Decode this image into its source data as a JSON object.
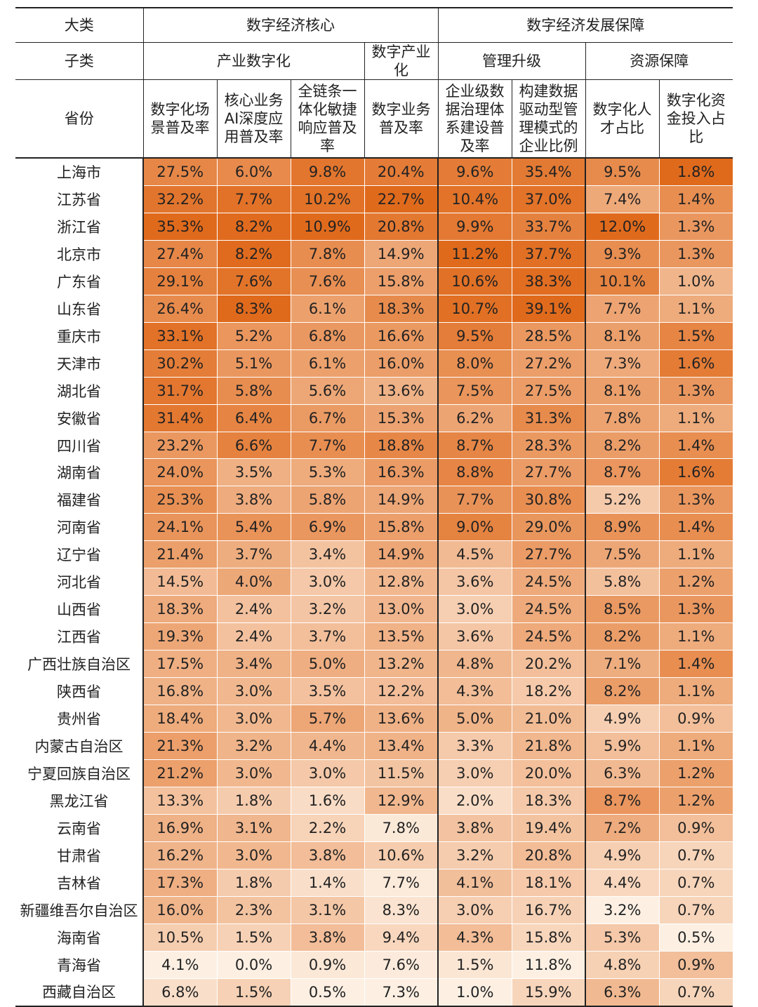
{
  "header": {
    "row1": {
      "label": "大类",
      "group_core": "数字经济核心",
      "group_support": "数字经济发展保障"
    },
    "row2": {
      "label": "子类",
      "sub1": "产业数字化",
      "sub2": "数字产业化",
      "sub3": "管理升级",
      "sub4": "资源保障"
    },
    "row3": {
      "label": "省份",
      "cols": [
        "数字化场景普及率",
        "核心业务AI深度应用普及率",
        "全链条一体化敏捷响应普及率",
        "数字业务普及率",
        "企业级数据治理体系建设普及率",
        "构建数据驱动型管理模式的企业比例",
        "数字化人才占比",
        "数字化资金投入占比"
      ]
    }
  },
  "colors": {
    "min": "#fdf0e3",
    "max": "#e06a1c",
    "text": "#222222",
    "border": "#222222"
  },
  "chart_data": {
    "type": "heatmap",
    "unit": "%",
    "columns": [
      "数字化场景普及率",
      "核心业务AI深度应用普及率",
      "全链条一体化敏捷响应普及率",
      "数字业务普及率",
      "企业级数据治理体系建设普及率",
      "构建数据驱动型管理模式的企业比例",
      "数字化人才占比",
      "数字化资金投入占比"
    ],
    "rows": [
      {
        "name": "上海市",
        "values": [
          "27.5%",
          "6.0%",
          "9.8%",
          "20.4%",
          "9.6%",
          "35.4%",
          "9.5%",
          "1.8%"
        ]
      },
      {
        "name": "江苏省",
        "values": [
          "32.2%",
          "7.7%",
          "10.2%",
          "22.7%",
          "10.4%",
          "37.0%",
          "7.4%",
          "1.4%"
        ]
      },
      {
        "name": "浙江省",
        "values": [
          "35.3%",
          "8.2%",
          "10.9%",
          "20.8%",
          "9.9%",
          "33.7%",
          "12.0%",
          "1.3%"
        ]
      },
      {
        "name": "北京市",
        "values": [
          "27.4%",
          "8.2%",
          "7.8%",
          "14.9%",
          "11.2%",
          "37.7%",
          "9.3%",
          "1.3%"
        ]
      },
      {
        "name": "广东省",
        "values": [
          "29.1%",
          "7.6%",
          "7.6%",
          "15.8%",
          "10.6%",
          "38.3%",
          "10.1%",
          "1.0%"
        ]
      },
      {
        "name": "山东省",
        "values": [
          "26.4%",
          "8.3%",
          "6.1%",
          "18.3%",
          "10.7%",
          "39.1%",
          "7.7%",
          "1.1%"
        ]
      },
      {
        "name": "重庆市",
        "values": [
          "33.1%",
          "5.2%",
          "6.8%",
          "16.6%",
          "9.5%",
          "28.5%",
          "8.1%",
          "1.5%"
        ]
      },
      {
        "name": "天津市",
        "values": [
          "30.2%",
          "5.1%",
          "6.1%",
          "16.0%",
          "8.0%",
          "27.2%",
          "7.3%",
          "1.6%"
        ]
      },
      {
        "name": "湖北省",
        "values": [
          "31.7%",
          "5.8%",
          "5.6%",
          "13.6%",
          "7.5%",
          "27.5%",
          "8.1%",
          "1.3%"
        ]
      },
      {
        "name": "安徽省",
        "values": [
          "31.4%",
          "6.4%",
          "6.7%",
          "15.3%",
          "6.2%",
          "31.3%",
          "7.8%",
          "1.1%"
        ]
      },
      {
        "name": "四川省",
        "values": [
          "23.2%",
          "6.6%",
          "7.7%",
          "18.8%",
          "8.7%",
          "28.3%",
          "8.2%",
          "1.4%"
        ]
      },
      {
        "name": "湖南省",
        "values": [
          "24.0%",
          "3.5%",
          "5.3%",
          "16.3%",
          "8.8%",
          "27.7%",
          "8.7%",
          "1.6%"
        ]
      },
      {
        "name": "福建省",
        "values": [
          "25.3%",
          "3.8%",
          "5.8%",
          "14.9%",
          "7.7%",
          "30.8%",
          "5.2%",
          "1.3%"
        ]
      },
      {
        "name": "河南省",
        "values": [
          "24.1%",
          "5.4%",
          "6.9%",
          "15.8%",
          "9.0%",
          "29.0%",
          "8.9%",
          "1.4%"
        ]
      },
      {
        "name": "辽宁省",
        "values": [
          "21.4%",
          "3.7%",
          "3.4%",
          "14.9%",
          "4.5%",
          "27.7%",
          "7.5%",
          "1.1%"
        ]
      },
      {
        "name": "河北省",
        "values": [
          "14.5%",
          "4.0%",
          "3.0%",
          "12.8%",
          "3.6%",
          "24.5%",
          "5.8%",
          "1.2%"
        ]
      },
      {
        "name": "山西省",
        "values": [
          "18.3%",
          "2.4%",
          "3.2%",
          "13.0%",
          "3.0%",
          "24.5%",
          "8.5%",
          "1.3%"
        ]
      },
      {
        "name": "江西省",
        "values": [
          "19.3%",
          "2.4%",
          "3.7%",
          "13.5%",
          "3.6%",
          "24.5%",
          "8.2%",
          "1.1%"
        ]
      },
      {
        "name": "广西壮族自治区",
        "values": [
          "17.5%",
          "3.4%",
          "5.0%",
          "13.2%",
          "4.8%",
          "20.2%",
          "7.1%",
          "1.4%"
        ]
      },
      {
        "name": "陕西省",
        "values": [
          "16.8%",
          "3.0%",
          "3.5%",
          "12.2%",
          "4.3%",
          "18.2%",
          "8.2%",
          "1.1%"
        ]
      },
      {
        "name": "贵州省",
        "values": [
          "18.4%",
          "3.0%",
          "5.7%",
          "13.6%",
          "5.0%",
          "21.0%",
          "4.9%",
          "0.9%"
        ]
      },
      {
        "name": "内蒙古自治区",
        "values": [
          "21.3%",
          "3.2%",
          "4.4%",
          "13.4%",
          "3.3%",
          "21.8%",
          "5.9%",
          "1.1%"
        ]
      },
      {
        "name": "宁夏回族自治区",
        "values": [
          "21.2%",
          "3.0%",
          "3.0%",
          "11.5%",
          "3.0%",
          "20.0%",
          "6.3%",
          "1.2%"
        ]
      },
      {
        "name": "黑龙江省",
        "values": [
          "13.3%",
          "1.8%",
          "1.6%",
          "12.9%",
          "2.0%",
          "18.3%",
          "8.7%",
          "1.2%"
        ]
      },
      {
        "name": "云南省",
        "values": [
          "16.9%",
          "3.1%",
          "2.2%",
          "7.8%",
          "3.8%",
          "19.4%",
          "7.2%",
          "0.9%"
        ]
      },
      {
        "name": "甘肃省",
        "values": [
          "16.2%",
          "3.0%",
          "3.8%",
          "10.6%",
          "3.2%",
          "20.8%",
          "4.9%",
          "0.7%"
        ]
      },
      {
        "name": "吉林省",
        "values": [
          "17.3%",
          "1.8%",
          "1.4%",
          "7.7%",
          "4.1%",
          "18.1%",
          "4.4%",
          "0.7%"
        ]
      },
      {
        "name": "新疆维吾尔自治区",
        "values": [
          "16.0%",
          "2.3%",
          "3.1%",
          "8.3%",
          "3.0%",
          "16.7%",
          "3.2%",
          "0.7%"
        ]
      },
      {
        "name": "海南省",
        "values": [
          "10.5%",
          "1.5%",
          "3.8%",
          "9.4%",
          "4.3%",
          "15.8%",
          "5.3%",
          "0.5%"
        ]
      },
      {
        "name": "青海省",
        "values": [
          "4.1%",
          "0.0%",
          "0.9%",
          "7.6%",
          "1.5%",
          "11.8%",
          "4.8%",
          "0.9%"
        ]
      },
      {
        "name": "西藏自治区",
        "values": [
          "6.8%",
          "1.5%",
          "0.5%",
          "7.3%",
          "1.0%",
          "15.9%",
          "6.3%",
          "0.7%"
        ]
      }
    ]
  }
}
